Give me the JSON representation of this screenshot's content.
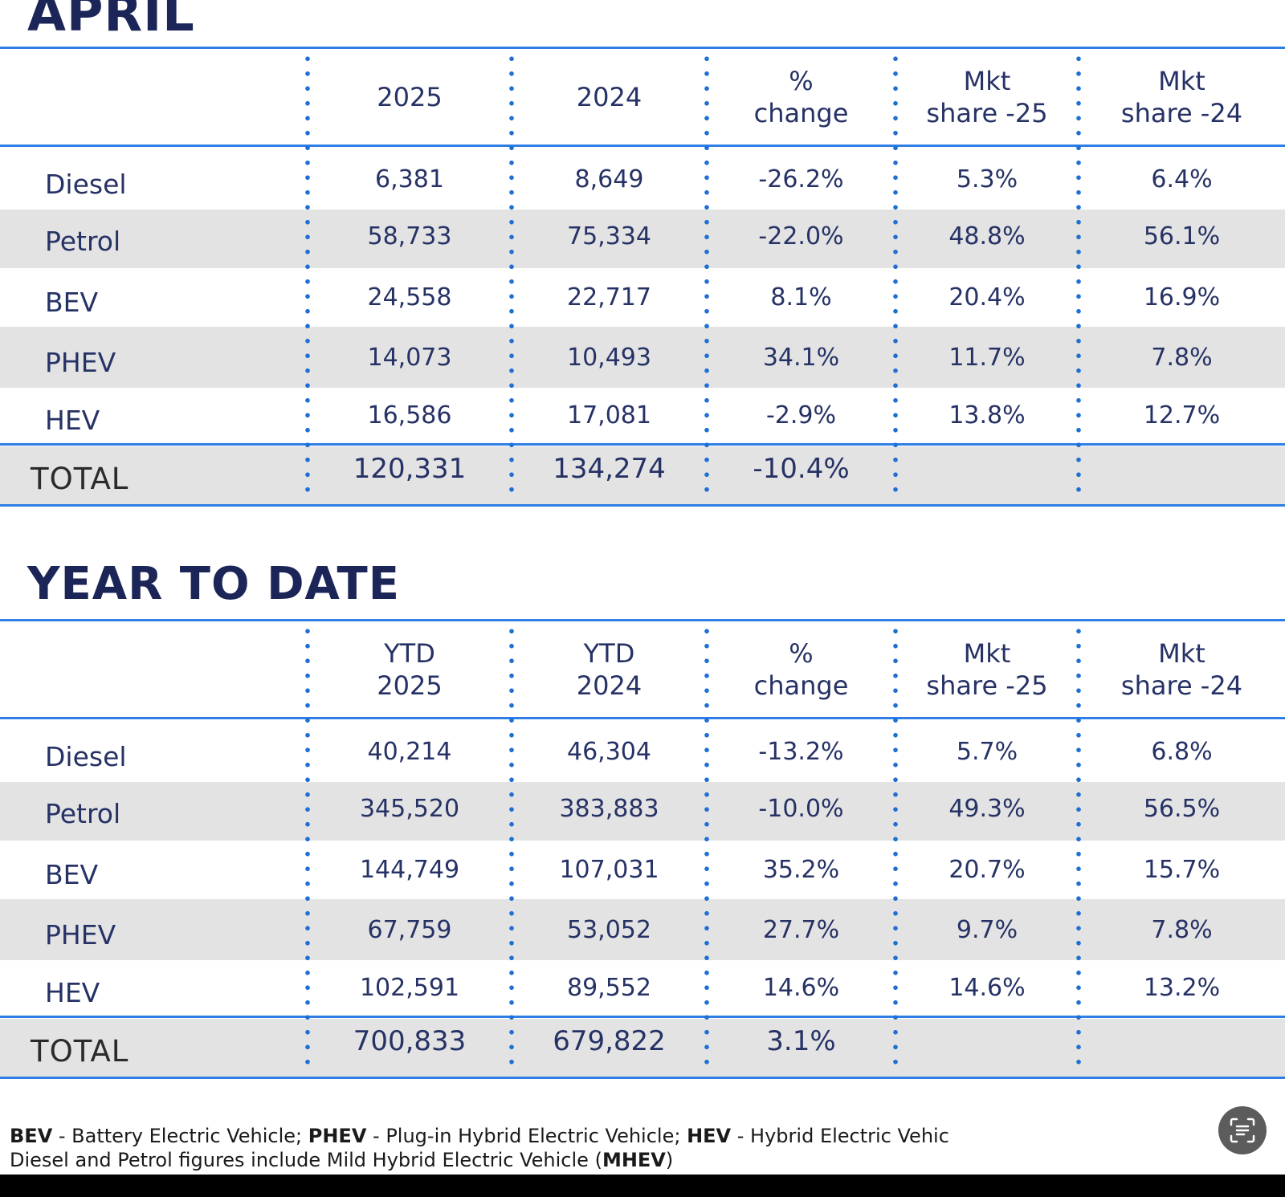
{
  "april": {
    "title": "APRIL",
    "headers": [
      {
        "line1": "",
        "line2": "2025"
      },
      {
        "line1": "",
        "line2": "2024"
      },
      {
        "line1": "%",
        "line2": "change"
      },
      {
        "line1": "Mkt",
        "line2": "share -25"
      },
      {
        "line1": "Mkt",
        "line2": "share -24"
      }
    ],
    "rows": [
      {
        "label": "Diesel",
        "values": [
          "6,381",
          "8,649",
          "-26.2%",
          "5.3%",
          "6.4%"
        ]
      },
      {
        "label": "Petrol",
        "values": [
          "58,733",
          "75,334",
          "-22.0%",
          "48.8%",
          "56.1%"
        ]
      },
      {
        "label": "BEV",
        "values": [
          "24,558",
          "22,717",
          "8.1%",
          "20.4%",
          "16.9%"
        ]
      },
      {
        "label": "PHEV",
        "values": [
          "14,073",
          "10,493",
          "34.1%",
          "11.7%",
          "7.8%"
        ]
      },
      {
        "label": "HEV",
        "values": [
          "16,586",
          "17,081",
          "-2.9%",
          "13.8%",
          "12.7%"
        ]
      }
    ],
    "total": {
      "label": "TOTAL",
      "values": [
        "120,331",
        "134,274",
        "-10.4%",
        "",
        ""
      ]
    }
  },
  "ytd": {
    "title": "YEAR TO DATE",
    "headers": [
      {
        "line1": "YTD",
        "line2": "2025"
      },
      {
        "line1": "YTD",
        "line2": "2024"
      },
      {
        "line1": "%",
        "line2": "change"
      },
      {
        "line1": "Mkt",
        "line2": "share -25"
      },
      {
        "line1": "Mkt",
        "line2": "share -24"
      }
    ],
    "rows": [
      {
        "label": "Diesel",
        "values": [
          "40,214",
          "46,304",
          "-13.2%",
          "5.7%",
          "6.8%"
        ]
      },
      {
        "label": "Petrol",
        "values": [
          "345,520",
          "383,883",
          "-10.0%",
          "49.3%",
          "56.5%"
        ]
      },
      {
        "label": "BEV",
        "values": [
          "144,749",
          "107,031",
          "35.2%",
          "20.7%",
          "15.7%"
        ]
      },
      {
        "label": "PHEV",
        "values": [
          "67,759",
          "53,052",
          "27.7%",
          "9.7%",
          "7.8%"
        ]
      },
      {
        "label": "HEV",
        "values": [
          "102,591",
          "89,552",
          "14.6%",
          "14.6%",
          "13.2%"
        ]
      }
    ],
    "total": {
      "label": "TOTAL",
      "values": [
        "700,833",
        "679,822",
        "3.1%",
        "",
        ""
      ]
    }
  },
  "footnote": {
    "bev_abbr": "BEV",
    "bev_text": " - Battery Electric Vehicle; ",
    "phev_abbr": "PHEV",
    "phev_text": " - Plug-in Hybrid Electric Vehicle; ",
    "hev_abbr": "HEV",
    "hev_text": " - Hybrid Electric Vehic",
    "line2_text": "Diesel and Petrol figures include Mild Hybrid Electric Vehicle (",
    "mhev_abbr": "MHEV",
    "line2_end": ")"
  },
  "icons": {
    "scan_button": "text-scan-icon"
  },
  "colors": {
    "title": "#1b2557",
    "accent_line": "#2f7ee5",
    "dots": "#1e6fd6",
    "shaded_row": "#e3e3e3",
    "text": "#263265"
  }
}
